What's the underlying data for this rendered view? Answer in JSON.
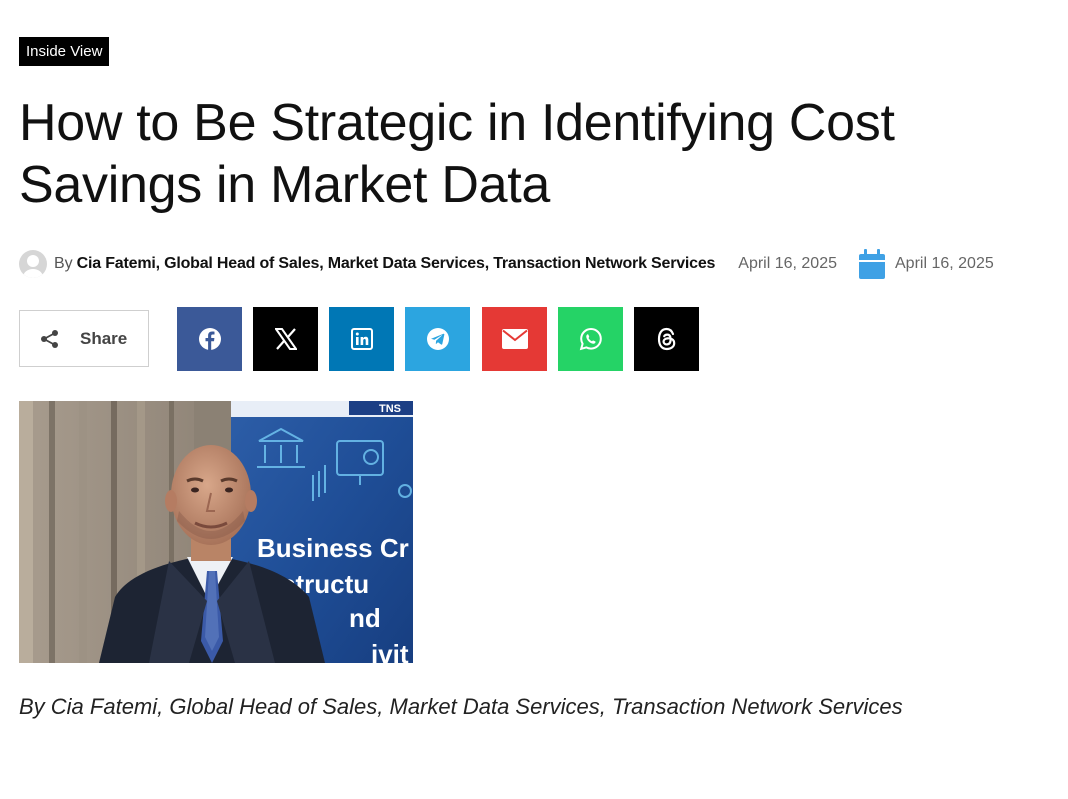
{
  "article": {
    "category": "Inside View",
    "title": "How to Be Strategic in Identifying Cost Savings in Market Data",
    "meta": {
      "by_label": "By",
      "author": "Cia Fatemi, Global Head of Sales, Market Data Services, Transaction Network Services",
      "published_date": "April 16, 2025",
      "updated_date": "April 16, 2025"
    },
    "share": {
      "label": "Share",
      "buttons": [
        {
          "network": "facebook",
          "icon": "facebook-icon",
          "color": "#3b5998"
        },
        {
          "network": "x",
          "icon": "x-icon",
          "color": "#000000"
        },
        {
          "network": "linkedin",
          "icon": "linkedin-icon",
          "color": "#0077b5"
        },
        {
          "network": "telegram",
          "icon": "telegram-icon",
          "color": "#2ca5e0"
        },
        {
          "network": "email",
          "icon": "email-icon",
          "color": "#e53935"
        },
        {
          "network": "whatsapp",
          "icon": "whatsapp-icon",
          "color": "#25d366"
        },
        {
          "network": "threads",
          "icon": "threads-icon",
          "color": "#000000"
        }
      ]
    },
    "image": {
      "banner_lines": [
        "Business Cr",
        "structu",
        "nd",
        "ivit"
      ],
      "banner_logo": "TNS"
    },
    "caption": "By Cia Fatemi, Global Head of Sales, Market Data Services, Transaction Network Services"
  },
  "colors": {
    "category_bg": "#000000",
    "calendar_icon": "#3fa1e5"
  }
}
